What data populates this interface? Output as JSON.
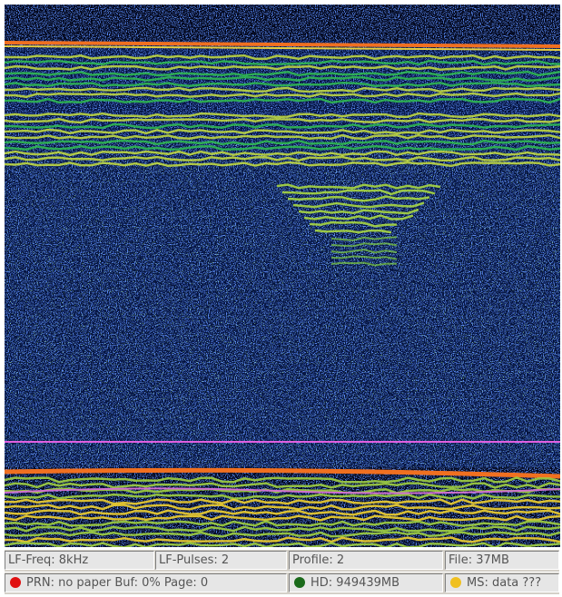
{
  "status_bar": {
    "rows": [
      [
        "LF-Freq: 8kHz",
        "LF-Pulses: 2",
        "Profile: 2",
        "File: 37MB"
      ],
      [
        "PRN: no paper Buf: 0% Page: 0",
        "HD: 949439MB",
        "MS: data ???"
      ]
    ]
  }
}
